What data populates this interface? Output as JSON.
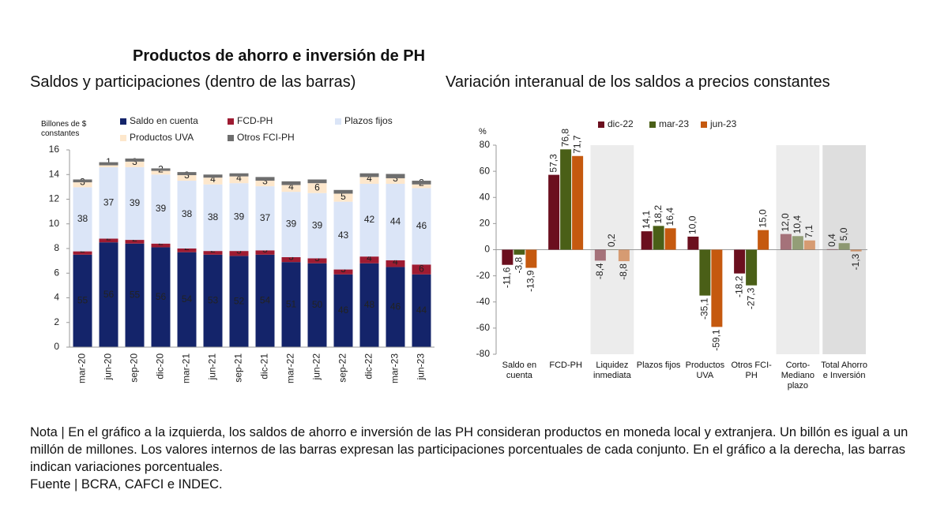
{
  "header": {
    "title": "Productos de ahorro e inversión de PH"
  },
  "chart_data": [
    {
      "type": "bar",
      "stacked": true,
      "title": "Saldos y participaciones (dentro de las barras)",
      "y_label": "Billones de $ constantes",
      "categories": [
        "mar-20",
        "jun-20",
        "sep-20",
        "dic-20",
        "mar-21",
        "jun-21",
        "sep-21",
        "dic-21",
        "mar-22",
        "jun-22",
        "sep-22",
        "dic-22",
        "mar-23",
        "jun-23"
      ],
      "series": [
        {
          "name": "Saldo en cuenta",
          "color": "#14246a",
          "values": [
            7.5,
            8.5,
            8.4,
            8.1,
            7.7,
            7.5,
            7.4,
            7.5,
            6.9,
            6.8,
            5.9,
            6.8,
            6.5,
            5.9
          ],
          "shares": [
            55,
            56,
            55,
            56,
            54,
            53,
            52,
            54,
            51,
            50,
            46,
            48,
            46,
            44
          ]
        },
        {
          "name": "FCD-PH",
          "color": "#9e1b32",
          "values": [
            0.27,
            0.3,
            0.3,
            0.3,
            0.3,
            0.3,
            0.4,
            0.35,
            0.4,
            0.4,
            0.4,
            0.55,
            0.55,
            0.8
          ],
          "shares": [
            2,
            2,
            2,
            2,
            2,
            2,
            3,
            3,
            3,
            3,
            3,
            4,
            4,
            6
          ]
        },
        {
          "name": "Plazos fijos",
          "color": "#dbe5f7",
          "values": [
            5.2,
            5.8,
            5.9,
            5.6,
            5.5,
            5.4,
            5.5,
            5.2,
            5.3,
            5.3,
            5.5,
            5.9,
            6.2,
            6.2
          ],
          "shares": [
            38,
            37,
            39,
            39,
            38,
            38,
            39,
            37,
            39,
            39,
            43,
            42,
            44,
            46
          ]
        },
        {
          "name": "Productos UVA",
          "color": "#fde7cc",
          "values": [
            0.4,
            0.15,
            0.45,
            0.3,
            0.45,
            0.55,
            0.55,
            0.45,
            0.55,
            0.8,
            0.65,
            0.55,
            0.45,
            0.3
          ],
          "shares": [
            3,
            1,
            3,
            2,
            3,
            4,
            4,
            3,
            4,
            6,
            5,
            4,
            3,
            2
          ]
        },
        {
          "name": "Otros FCI-PH",
          "color": "#6e6e6e",
          "values": [
            0.23,
            0.25,
            0.25,
            0.2,
            0.25,
            0.25,
            0.25,
            0.3,
            0.3,
            0.3,
            0.3,
            0.3,
            0.35,
            0.3
          ]
        }
      ],
      "ylim": [
        0,
        16
      ],
      "yticks": [
        0,
        2,
        4,
        6,
        8,
        10,
        12,
        14,
        16
      ],
      "grid": false,
      "legend": "top"
    },
    {
      "type": "bar",
      "stacked": false,
      "title": "Variación interanual de los saldos a precios constantes",
      "y_label": "%",
      "categories": [
        "Saldo en cuenta",
        "FCD-PH",
        "Liquidez inmediata",
        "Plazos fijos",
        "Productos UVA",
        "Otros FCI-PH",
        "Corto-Mediano plazo",
        "Total Ahorro e Inversión"
      ],
      "shaded": [
        false,
        false,
        true,
        false,
        false,
        false,
        true,
        true
      ],
      "series": [
        {
          "name": "dic-22",
          "color": "#6b0f1e",
          "values": [
            -11.6,
            57.3,
            -8.4,
            14.1,
            10.0,
            -18.2,
            12.0,
            0.4
          ],
          "value_labels": [
            "-11,6",
            "57,3",
            "-8,4",
            "14,1",
            "10,0",
            "-18,2",
            "12,0",
            "0,4"
          ]
        },
        {
          "name": "mar-23",
          "color": "#4a5f17",
          "values": [
            -3.8,
            76.8,
            0.2,
            18.2,
            -35.1,
            -27.3,
            10.4,
            5.0
          ],
          "value_labels": [
            "-3,8",
            "76,8",
            "0,2",
            "18,2",
            "-35,1",
            "-27,3",
            "10,4",
            "5,0"
          ]
        },
        {
          "name": "jun-23",
          "color": "#c5590f",
          "values": [
            -13.9,
            71.7,
            -8.8,
            16.4,
            -59.1,
            15.0,
            7.1,
            -1.3
          ],
          "value_labels": [
            "-13,9",
            "71,7",
            "-8,8",
            "16,4",
            "-59,1",
            "15,0",
            "7,1",
            "-1,3"
          ]
        }
      ],
      "ylim": [
        -80,
        80
      ],
      "yticks": [
        -80,
        -60,
        -40,
        -20,
        0,
        20,
        40,
        60,
        80
      ],
      "grid": false,
      "legend": "top"
    }
  ],
  "footer": {
    "note": "Nota | En el gráfico a la izquierda, los saldos de ahorro e inversión de las PH consideran productos en moneda local y extranjera. Un billón es igual a un millón de millones. Los valores internos de las barras expresan las participaciones porcentuales de cada conjunto. En el gráfico a la derecha, las barras indican variaciones porcentuales.",
    "source": "Fuente | BCRA, CAFCI e INDEC."
  }
}
